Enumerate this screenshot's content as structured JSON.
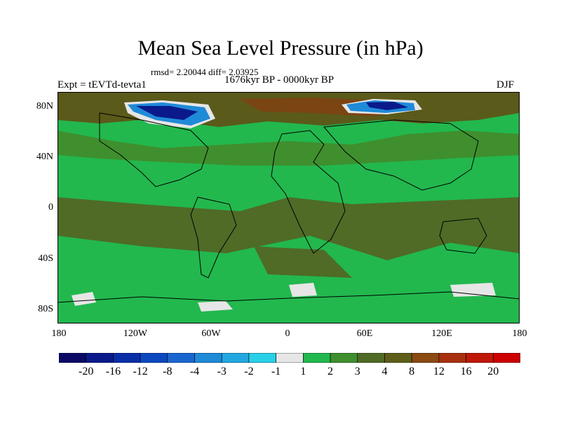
{
  "title": "Mean Sea Level Pressure (in hPa)",
  "stats": "rmsd= 2.20044 diff= 2.03925",
  "period": "1676kyr BP - 0000kyr BP",
  "experiment": "Expt = tEVTd-tevta1",
  "season": "DJF",
  "axes": {
    "lat_labels": [
      "80N",
      "40N",
      "0",
      "40S",
      "80S"
    ],
    "lon_labels": [
      "180",
      "120W",
      "60W",
      "0",
      "60E",
      "120E",
      "180"
    ]
  },
  "colorbar": {
    "labels": [
      "-20",
      "-16",
      "-12",
      "-8",
      "-4",
      "-3",
      "-2",
      "-1",
      "1",
      "2",
      "3",
      "4",
      "8",
      "12",
      "16",
      "20"
    ],
    "colors": [
      "#0a0a66",
      "#0a1a8a",
      "#0a2ea8",
      "#0b48c0",
      "#1a66d0",
      "#1f8ad8",
      "#22a8e0",
      "#2ad0e8",
      "#e6e6e6",
      "#22b84e",
      "#3f8f2e",
      "#4f6b26",
      "#5e5e1a",
      "#8a4a12",
      "#a8300e",
      "#c01808",
      "#cc0000"
    ]
  },
  "map_fields": {
    "background": "#22b84e",
    "band_dark": "#4f6b26",
    "band_mid": "#3f8f2e",
    "arctic": "#5a5a1a",
    "arctic_brown": "#7a4512",
    "low_deep": "#0a1a8a",
    "low_mid": "#1f8ad8",
    "low_light": "#e6e6e6",
    "coast": "#000000"
  }
}
